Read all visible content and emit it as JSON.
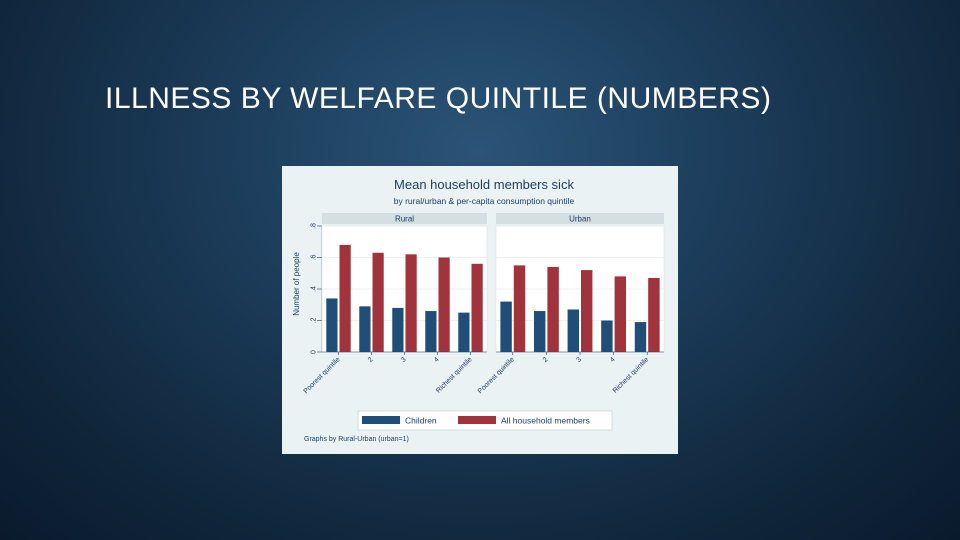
{
  "slide": {
    "title": "ILLNESS BY WELFARE QUINTILE (NUMBERS)"
  },
  "colors": {
    "children": "#1f4e79",
    "all_members": "#a0333b",
    "figure_bg": "#eaf2f3",
    "text": "#1e3f66"
  },
  "chart_data": {
    "type": "bar",
    "title": "Mean household members sick",
    "subtitle": "by rural/urban & per-capita consumption quintile",
    "ylabel": "Number of people",
    "ylim": [
      0,
      0.8
    ],
    "yticks": [
      "0",
      ".2",
      ".4",
      ".6",
      ".8"
    ],
    "yticks_values": [
      0,
      0.2,
      0.4,
      0.6,
      0.8
    ],
    "grid": true,
    "legend_position": "bottom",
    "note": "Graphs by Rural-Urban (urban=1)",
    "categories": [
      "Poorest quintile",
      "2",
      "3",
      "4",
      "Richest quintile"
    ],
    "series_names": [
      "Children",
      "All household members"
    ],
    "panels": [
      {
        "name": "Rural",
        "series": [
          {
            "name": "Children",
            "values": [
              0.34,
              0.29,
              0.28,
              0.26,
              0.25
            ]
          },
          {
            "name": "All household members",
            "values": [
              0.68,
              0.63,
              0.62,
              0.6,
              0.56
            ]
          }
        ]
      },
      {
        "name": "Urban",
        "series": [
          {
            "name": "Children",
            "values": [
              0.32,
              0.26,
              0.27,
              0.2,
              0.19
            ]
          },
          {
            "name": "All household members",
            "values": [
              0.55,
              0.54,
              0.52,
              0.48,
              0.47
            ]
          }
        ]
      }
    ]
  }
}
